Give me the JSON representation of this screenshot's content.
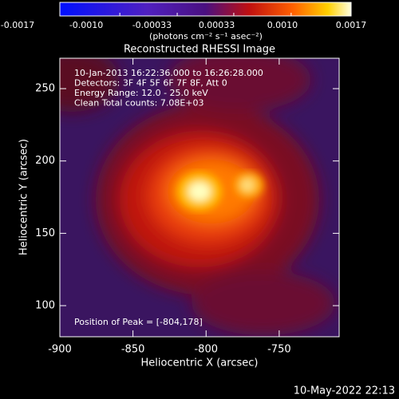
{
  "chart_data": {
    "type": "image",
    "title": "Reconstructed RHESSI Image",
    "xlabel": "Heliocentric X (arcsec)",
    "ylabel": "Heliocentric Y (arcsec)",
    "xlim": [
      -900,
      -709
    ],
    "ylim": [
      78.5,
      271
    ],
    "xticks": [
      -900,
      -850,
      -800,
      -750
    ],
    "yticks": [
      100,
      150,
      200,
      250
    ],
    "colorbar": {
      "lim": [
        -0.0017,
        0.0017
      ],
      "ticks": [
        -0.0017,
        -0.001,
        -0.00033,
        0.00033,
        0.001,
        0.0017
      ],
      "tick_labels": [
        "-0.0017",
        "-0.0010",
        "-0.00033",
        "0.00033",
        "0.0010",
        "0.0017"
      ],
      "label": "(photons cm⁻² s⁻¹ asec⁻²)"
    },
    "annotations": [
      "10-Jan-2013 16:22:36.000 to 16:26:28.000",
      "Detectors: 3F 4F 5F 6F 7F 8F, Att 0",
      "Energy Range: 12.0 - 25.0 keV",
      "Clean     Total counts: 7.08E+03"
    ],
    "peak_label": "Position of Peak = [-804,178]",
    "footer": "10-May-2022 22:13"
  }
}
